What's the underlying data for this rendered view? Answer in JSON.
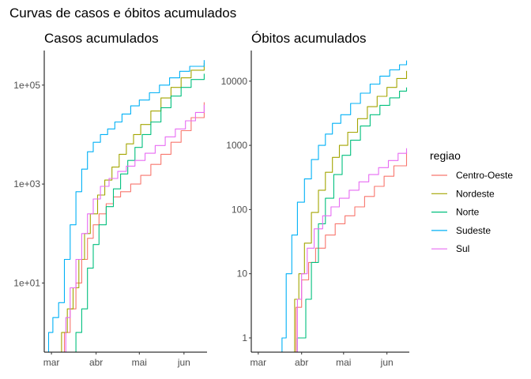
{
  "title": "Curvas de casos e óbitos acumulados",
  "legend": {
    "title": "regiao",
    "items": [
      {
        "label": "Centro-Oeste",
        "color": "#F8766D"
      },
      {
        "label": "Nordeste",
        "color": "#A3A500"
      },
      {
        "label": "Norte",
        "color": "#00BF7D"
      },
      {
        "label": "Sudeste",
        "color": "#00B0F6"
      },
      {
        "label": "Sul",
        "color": "#E76BF3"
      }
    ]
  },
  "chart_data": [
    {
      "type": "line",
      "title": "Casos acumulados",
      "yscale": "log",
      "ylim": [
        0.4,
        500000
      ],
      "yticks": [
        10,
        1000,
        100000
      ],
      "ytick_labels": [
        "1e+01",
        "1e+03",
        "1e+05"
      ],
      "xlim": [
        "2020-02-25",
        "2020-06-17"
      ],
      "xticks": [
        "2020-03-01",
        "2020-04-01",
        "2020-05-01",
        "2020-06-01"
      ],
      "xtick_labels": [
        "mar",
        "abr",
        "mai",
        "jun"
      ],
      "series": [
        {
          "name": "Centro-Oeste",
          "color": "#F8766D",
          "x": [
            "2020-03-07",
            "2020-03-10",
            "2020-03-14",
            "2020-03-18",
            "2020-03-22",
            "2020-03-26",
            "2020-03-30",
            "2020-04-03",
            "2020-04-08",
            "2020-04-13",
            "2020-04-18",
            "2020-04-25",
            "2020-05-02",
            "2020-05-09",
            "2020-05-16",
            "2020-05-23",
            "2020-05-30",
            "2020-06-06",
            "2020-06-15"
          ],
          "y": [
            0.4,
            1,
            3,
            10,
            30,
            80,
            150,
            250,
            400,
            550,
            700,
            1000,
            1500,
            2500,
            4000,
            7000,
            12000,
            22000,
            45000
          ]
        },
        {
          "name": "Nordeste",
          "color": "#A3A500",
          "x": [
            "2020-03-05",
            "2020-03-08",
            "2020-03-12",
            "2020-03-16",
            "2020-03-20",
            "2020-03-24",
            "2020-03-28",
            "2020-04-02",
            "2020-04-07",
            "2020-04-12",
            "2020-04-17",
            "2020-04-22",
            "2020-04-27",
            "2020-05-02",
            "2020-05-09",
            "2020-05-16",
            "2020-05-23",
            "2020-05-30",
            "2020-06-06",
            "2020-06-15"
          ],
          "y": [
            0.4,
            1,
            3,
            8,
            30,
            100,
            250,
            600,
            1200,
            2200,
            4000,
            6500,
            10000,
            16000,
            30000,
            55000,
            90000,
            140000,
            200000,
            280000
          ]
        },
        {
          "name": "Norte",
          "color": "#00BF7D",
          "x": [
            "2020-03-14",
            "2020-03-18",
            "2020-03-22",
            "2020-03-26",
            "2020-03-30",
            "2020-04-03",
            "2020-04-08",
            "2020-04-13",
            "2020-04-18",
            "2020-04-23",
            "2020-04-28",
            "2020-05-03",
            "2020-05-09",
            "2020-05-16",
            "2020-05-23",
            "2020-05-30",
            "2020-06-06",
            "2020-06-15"
          ],
          "y": [
            0.4,
            1,
            3,
            20,
            60,
            150,
            350,
            800,
            1600,
            3000,
            5500,
            10000,
            18000,
            35000,
            60000,
            90000,
            130000,
            170000
          ]
        },
        {
          "name": "Sudeste",
          "color": "#00B0F6",
          "x": [
            "2020-02-26",
            "2020-02-28",
            "2020-03-02",
            "2020-03-06",
            "2020-03-10",
            "2020-03-14",
            "2020-03-18",
            "2020-03-22",
            "2020-03-26",
            "2020-03-30",
            "2020-04-04",
            "2020-04-09",
            "2020-04-14",
            "2020-04-19",
            "2020-04-25",
            "2020-05-01",
            "2020-05-08",
            "2020-05-15",
            "2020-05-22",
            "2020-05-29",
            "2020-06-05",
            "2020-06-15"
          ],
          "y": [
            0.4,
            1,
            2,
            4,
            30,
            150,
            700,
            2000,
            4500,
            7000,
            10000,
            13000,
            18000,
            26000,
            38000,
            50000,
            70000,
            100000,
            140000,
            190000,
            240000,
            320000
          ]
        },
        {
          "name": "Sul",
          "color": "#E76BF3",
          "x": [
            "2020-03-07",
            "2020-03-11",
            "2020-03-14",
            "2020-03-18",
            "2020-03-22",
            "2020-03-26",
            "2020-03-30",
            "2020-04-04",
            "2020-04-10",
            "2020-04-16",
            "2020-04-22",
            "2020-04-28",
            "2020-05-05",
            "2020-05-12",
            "2020-05-19",
            "2020-05-26",
            "2020-06-02",
            "2020-06-09",
            "2020-06-15"
          ],
          "y": [
            0.4,
            2,
            8,
            30,
            100,
            250,
            500,
            900,
            1300,
            1800,
            2300,
            3000,
            4200,
            6000,
            9000,
            13000,
            19000,
            28000,
            40000
          ]
        }
      ]
    },
    {
      "type": "line",
      "title": "Óbitos acumulados",
      "yscale": "log",
      "ylim": [
        0.6,
        30000
      ],
      "yticks": [
        1,
        10,
        100,
        1000,
        10000
      ],
      "ytick_labels": [
        "1",
        "10",
        "100",
        "1000",
        "10000"
      ],
      "xlim": [
        "2020-02-25",
        "2020-06-17"
      ],
      "xticks": [
        "2020-03-01",
        "2020-04-01",
        "2020-05-01",
        "2020-06-01"
      ],
      "xtick_labels": [
        "mar",
        "abr",
        "mai",
        "jun"
      ],
      "series": [
        {
          "name": "Centro-Oeste",
          "color": "#F8766D",
          "x": [
            "2020-03-26",
            "2020-03-28",
            "2020-04-01",
            "2020-04-06",
            "2020-04-11",
            "2020-04-18",
            "2020-04-25",
            "2020-05-02",
            "2020-05-09",
            "2020-05-16",
            "2020-05-23",
            "2020-05-30",
            "2020-06-06",
            "2020-06-15"
          ],
          "y": [
            0.6,
            3,
            8,
            15,
            25,
            40,
            60,
            80,
            110,
            160,
            230,
            330,
            480,
            800
          ]
        },
        {
          "name": "Nordeste",
          "color": "#A3A500",
          "x": [
            "2020-03-25",
            "2020-03-27",
            "2020-03-30",
            "2020-04-03",
            "2020-04-08",
            "2020-04-13",
            "2020-04-18",
            "2020-04-23",
            "2020-04-28",
            "2020-05-04",
            "2020-05-11",
            "2020-05-18",
            "2020-05-25",
            "2020-06-01",
            "2020-06-08",
            "2020-06-15"
          ],
          "y": [
            0.6,
            4,
            10,
            30,
            90,
            200,
            380,
            650,
            1000,
            1600,
            2600,
            4000,
            5800,
            8000,
            11000,
            14500
          ]
        },
        {
          "name": "Norte",
          "color": "#00BF7D",
          "x": [
            "2020-03-27",
            "2020-03-29",
            "2020-04-01",
            "2020-04-04",
            "2020-04-08",
            "2020-04-13",
            "2020-04-18",
            "2020-04-24",
            "2020-04-30",
            "2020-05-06",
            "2020-05-13",
            "2020-05-20",
            "2020-05-27",
            "2020-06-03",
            "2020-06-10",
            "2020-06-15"
          ],
          "y": [
            0.6,
            1,
            1,
            4,
            15,
            60,
            150,
            350,
            700,
            1200,
            2000,
            3000,
            4200,
            5500,
            7000,
            8000
          ]
        },
        {
          "name": "Sudeste",
          "color": "#00B0F6",
          "x": [
            "2020-03-16",
            "2020-03-18",
            "2020-03-21",
            "2020-03-25",
            "2020-03-29",
            "2020-04-03",
            "2020-04-08",
            "2020-04-13",
            "2020-04-18",
            "2020-04-23",
            "2020-04-29",
            "2020-05-06",
            "2020-05-13",
            "2020-05-20",
            "2020-05-27",
            "2020-06-03",
            "2020-06-10",
            "2020-06-15"
          ],
          "y": [
            0.6,
            1,
            10,
            40,
            130,
            300,
            600,
            1000,
            1500,
            2200,
            3000,
            4500,
            6500,
            9000,
            12000,
            15000,
            18000,
            21000
          ]
        },
        {
          "name": "Sul",
          "color": "#E76BF3",
          "x": [
            "2020-03-26",
            "2020-03-29",
            "2020-04-01",
            "2020-04-05",
            "2020-04-10",
            "2020-04-16",
            "2020-04-22",
            "2020-04-28",
            "2020-05-05",
            "2020-05-12",
            "2020-05-19",
            "2020-05-26",
            "2020-06-02",
            "2020-06-09",
            "2020-06-15"
          ],
          "y": [
            0.6,
            4,
            10,
            25,
            50,
            80,
            110,
            150,
            200,
            270,
            350,
            450,
            580,
            750,
            900
          ]
        }
      ]
    }
  ]
}
